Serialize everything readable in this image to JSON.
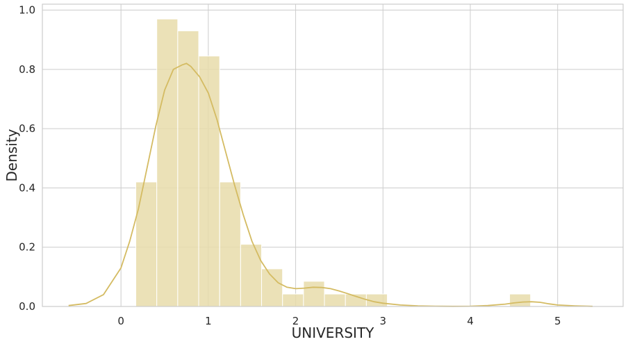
{
  "chart_data": {
    "type": "bar",
    "subtype": "histogram-with-kde",
    "title": "",
    "xlabel": "UNIVERSITY",
    "ylabel": "Density",
    "xlim": [
      -0.9,
      5.75
    ],
    "ylim": [
      0,
      1.02
    ],
    "xticks": [
      0,
      1,
      2,
      3,
      4,
      5
    ],
    "yticks": [
      0.0,
      0.2,
      0.4,
      0.6,
      0.8,
      1.0
    ],
    "xtick_labels": [
      "0",
      "1",
      "2",
      "3",
      "4",
      "5"
    ],
    "ytick_labels": [
      "0.0",
      "0.2",
      "0.4",
      "0.6",
      "0.8",
      "1.0"
    ],
    "grid": true,
    "bar_color": "#e8dcaa",
    "line_color": "#d4bb62",
    "bins": [
      {
        "x0": 0.17,
        "x1": 0.41,
        "density": 0.42
      },
      {
        "x0": 0.41,
        "x1": 0.65,
        "density": 0.97
      },
      {
        "x0": 0.65,
        "x1": 0.89,
        "density": 0.93
      },
      {
        "x0": 0.89,
        "x1": 1.13,
        "density": 0.845
      },
      {
        "x0": 1.13,
        "x1": 1.37,
        "density": 0.42
      },
      {
        "x0": 1.37,
        "x1": 1.61,
        "density": 0.21
      },
      {
        "x0": 1.61,
        "x1": 1.85,
        "density": 0.127
      },
      {
        "x0": 1.85,
        "x1": 2.09,
        "density": 0.042
      },
      {
        "x0": 2.09,
        "x1": 2.33,
        "density": 0.085
      },
      {
        "x0": 2.33,
        "x1": 2.57,
        "density": 0.042
      },
      {
        "x0": 2.57,
        "x1": 2.81,
        "density": 0.042
      },
      {
        "x0": 2.81,
        "x1": 3.05,
        "density": 0.042
      },
      {
        "x0": 4.45,
        "x1": 4.69,
        "density": 0.042
      }
    ],
    "kde": {
      "x": [
        -0.6,
        -0.4,
        -0.2,
        0.0,
        0.1,
        0.2,
        0.3,
        0.4,
        0.5,
        0.6,
        0.7,
        0.75,
        0.8,
        0.9,
        1.0,
        1.1,
        1.2,
        1.3,
        1.4,
        1.5,
        1.6,
        1.7,
        1.8,
        1.9,
        2.0,
        2.1,
        2.2,
        2.3,
        2.4,
        2.5,
        2.6,
        2.7,
        2.8,
        2.9,
        3.0,
        3.2,
        3.4,
        3.6,
        3.8,
        4.0,
        4.2,
        4.4,
        4.5,
        4.6,
        4.7,
        4.8,
        4.9,
        5.0,
        5.2,
        5.4
      ],
      "y": [
        0.003,
        0.01,
        0.04,
        0.13,
        0.22,
        0.33,
        0.47,
        0.61,
        0.73,
        0.8,
        0.815,
        0.82,
        0.81,
        0.775,
        0.72,
        0.63,
        0.52,
        0.41,
        0.31,
        0.22,
        0.155,
        0.11,
        0.08,
        0.065,
        0.06,
        0.062,
        0.065,
        0.064,
        0.06,
        0.052,
        0.043,
        0.033,
        0.024,
        0.016,
        0.011,
        0.005,
        0.002,
        0.001,
        0.0005,
        0.001,
        0.003,
        0.008,
        0.012,
        0.015,
        0.016,
        0.014,
        0.009,
        0.005,
        0.002,
        0.0005
      ]
    }
  }
}
